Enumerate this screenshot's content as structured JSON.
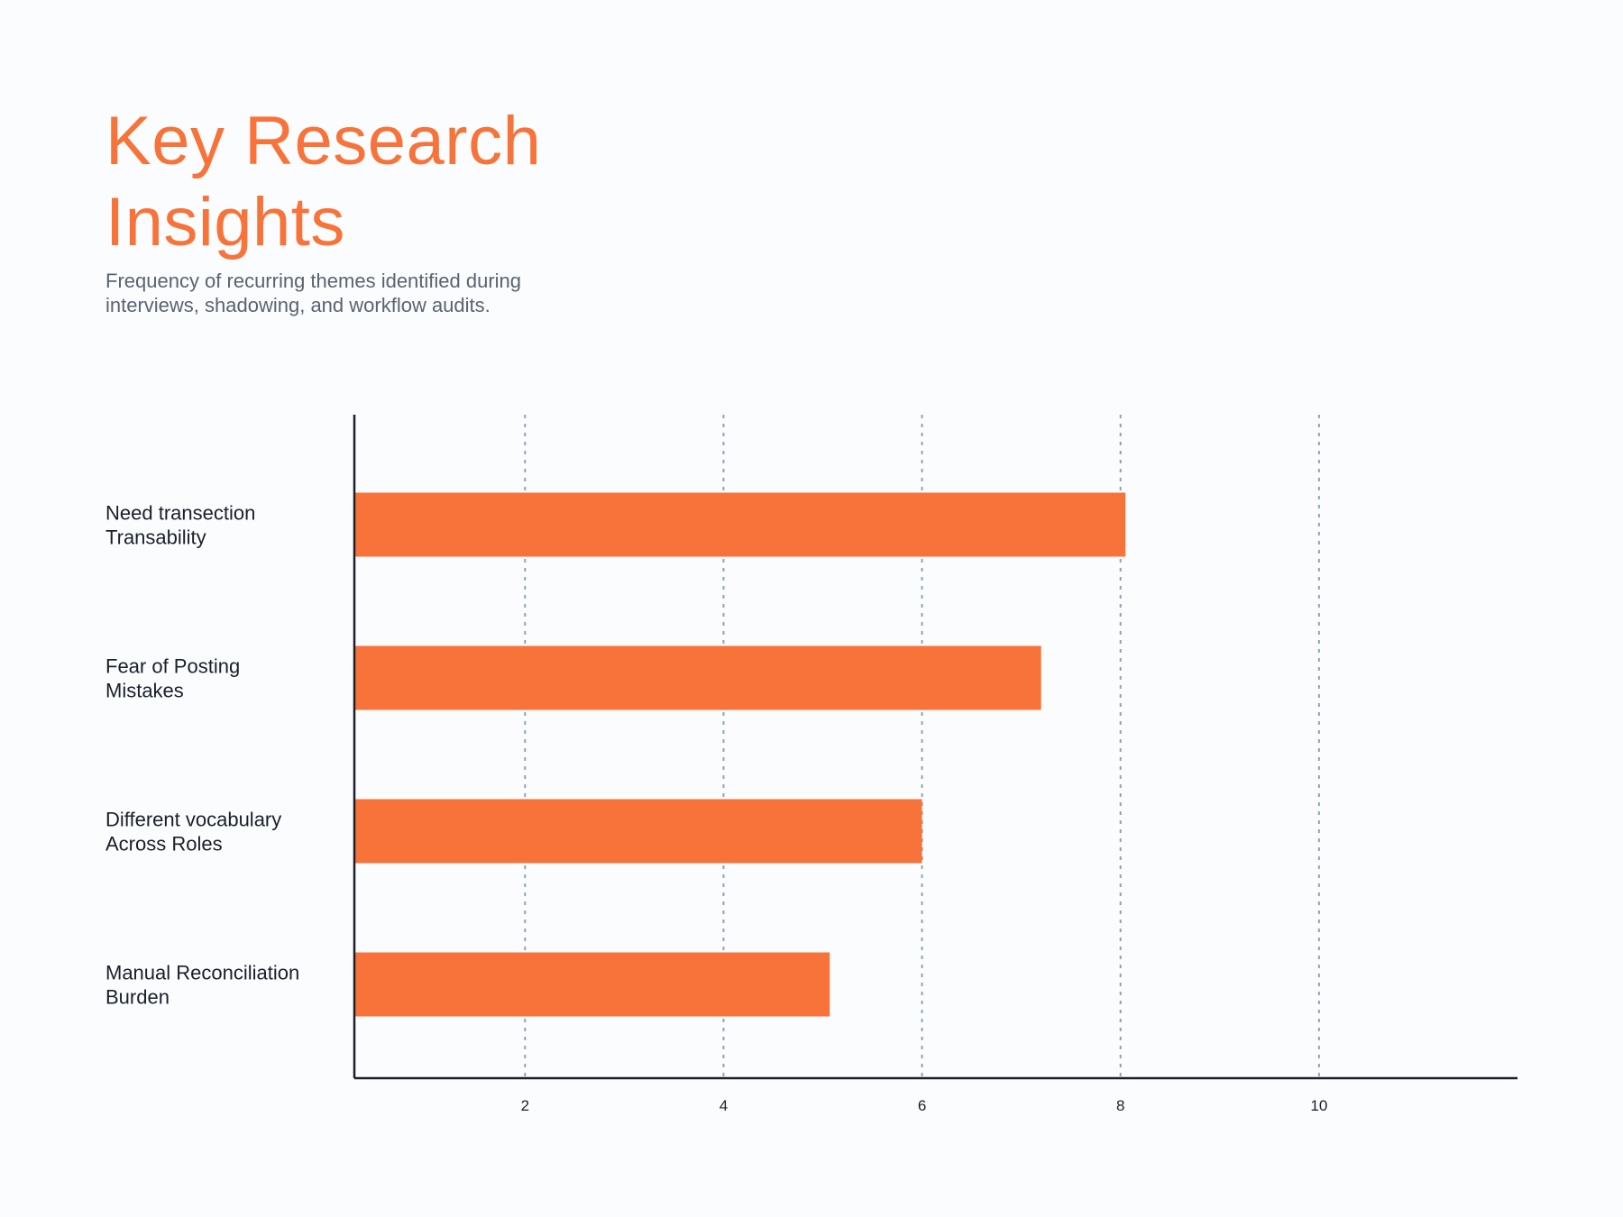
{
  "header": {
    "title": "Key Research Insights",
    "subtitle": "Frequency of recurring themes identified during interviews, shadowing, and workflow audits."
  },
  "colors": {
    "bar": "#f7733a",
    "grid": "#8fa3b3",
    "axis": "#1b1f2a"
  },
  "chart_data": {
    "type": "bar",
    "orientation": "horizontal",
    "categories": [
      [
        "Need transection",
        "Transability"
      ],
      [
        "Fear of Posting",
        "Mistakes"
      ],
      [
        "Different vocabulary",
        "Across Roles"
      ],
      [
        "Manual Reconciliation",
        "Burden"
      ]
    ],
    "values": [
      8.05,
      7.2,
      6.0,
      5.07
    ],
    "xticks": [
      2,
      4,
      6,
      8,
      10
    ],
    "xlim": [
      0.28,
      12
    ],
    "grid": "vertical-dashed",
    "legend": "none"
  }
}
